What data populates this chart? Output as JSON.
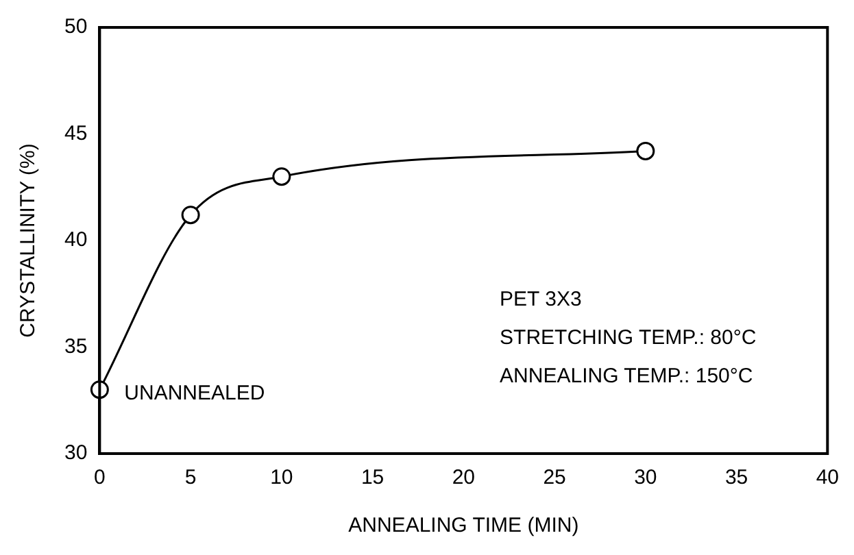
{
  "chart_data": {
    "type": "line",
    "xlabel": "ANNEALING TIME (MIN)",
    "ylabel": "CRYSTALLINITY (%)",
    "x": [
      0,
      5,
      10,
      30
    ],
    "series": [
      {
        "color": "#000000",
        "values": [
          33,
          41.2,
          43,
          44.2
        ]
      }
    ],
    "xlim": [
      0,
      40
    ],
    "xticks": [
      0,
      5,
      10,
      15,
      20,
      25,
      30,
      35,
      40
    ],
    "ylim": [
      30,
      50
    ],
    "yticks": [
      30,
      35,
      40,
      45,
      50
    ],
    "grid": false,
    "legend": false,
    "marker": "circle",
    "line_style": "solid",
    "annotations": [
      {
        "text": "UNANNEALED",
        "x": 0,
        "y": 33
      },
      "PET 3X3",
      "STRETCHING TEMP.: 80°C",
      "ANNEALING TEMP.: 150°C"
    ]
  }
}
